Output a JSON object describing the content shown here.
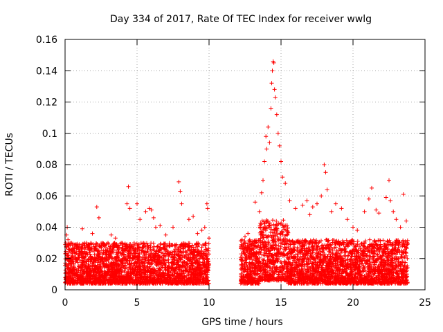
{
  "chart_data": {
    "type": "scatter",
    "title": "Day 334 of 2017, Rate Of TEC Index for receiver wwlg",
    "xlabel": "GPS time / hours",
    "ylabel": "ROTI / TECUs",
    "xlim": [
      0,
      25
    ],
    "ylim": [
      0,
      0.16
    ],
    "x_ticks": [
      "0",
      "5",
      "10",
      "15",
      "20",
      "25"
    ],
    "y_ticks": [
      "0",
      "0.02",
      "0.04",
      "0.06",
      "0.08",
      "0.1",
      "0.12",
      "0.14",
      "0.16"
    ],
    "grid": true,
    "marker": "+",
    "series": [
      {
        "name": "ROTI",
        "color": "#ff0000",
        "points": [
          [
            0.05,
            0.03
          ],
          [
            0.1,
            0.035
          ],
          [
            0.15,
            0.04
          ],
          [
            0.2,
            0.032
          ],
          [
            0.25,
            0.029
          ],
          [
            0.5,
            0.018
          ],
          [
            1.0,
            0.022
          ],
          [
            1.2,
            0.039
          ],
          [
            1.5,
            0.03
          ],
          [
            1.9,
            0.036
          ],
          [
            2.2,
            0.053
          ],
          [
            2.35,
            0.046
          ],
          [
            2.6,
            0.03
          ],
          [
            2.8,
            0.025
          ],
          [
            3.2,
            0.035
          ],
          [
            3.5,
            0.033
          ],
          [
            3.9,
            0.03
          ],
          [
            4.3,
            0.055
          ],
          [
            4.4,
            0.066
          ],
          [
            4.5,
            0.052
          ],
          [
            4.8,
            0.03
          ],
          [
            5.0,
            0.055
          ],
          [
            5.2,
            0.045
          ],
          [
            5.6,
            0.05
          ],
          [
            5.85,
            0.052
          ],
          [
            6.0,
            0.051
          ],
          [
            6.15,
            0.046
          ],
          [
            6.3,
            0.04
          ],
          [
            6.6,
            0.041
          ],
          [
            7.0,
            0.035
          ],
          [
            7.5,
            0.04
          ],
          [
            7.9,
            0.069
          ],
          [
            8.0,
            0.063
          ],
          [
            8.1,
            0.055
          ],
          [
            8.6,
            0.045
          ],
          [
            8.9,
            0.047
          ],
          [
            9.2,
            0.036
          ],
          [
            9.5,
            0.038
          ],
          [
            9.7,
            0.04
          ],
          [
            9.85,
            0.055
          ],
          [
            9.9,
            0.052
          ],
          [
            10.0,
            0.033
          ],
          [
            12.3,
            0.032
          ],
          [
            12.5,
            0.034
          ],
          [
            12.7,
            0.036
          ],
          [
            13.2,
            0.056
          ],
          [
            13.5,
            0.05
          ],
          [
            13.65,
            0.062
          ],
          [
            13.75,
            0.07
          ],
          [
            13.85,
            0.082
          ],
          [
            13.95,
            0.098
          ],
          [
            14.0,
            0.09
          ],
          [
            14.1,
            0.104
          ],
          [
            14.2,
            0.094
          ],
          [
            14.3,
            0.116
          ],
          [
            14.35,
            0.132
          ],
          [
            14.4,
            0.14
          ],
          [
            14.45,
            0.146
          ],
          [
            14.5,
            0.145
          ],
          [
            14.55,
            0.128
          ],
          [
            14.6,
            0.123
          ],
          [
            14.7,
            0.112
          ],
          [
            14.8,
            0.1
          ],
          [
            14.9,
            0.092
          ],
          [
            15.0,
            0.082
          ],
          [
            15.1,
            0.072
          ],
          [
            15.3,
            0.068
          ],
          [
            15.6,
            0.057
          ],
          [
            16.0,
            0.052
          ],
          [
            16.5,
            0.054
          ],
          [
            16.8,
            0.057
          ],
          [
            17.0,
            0.048
          ],
          [
            17.2,
            0.053
          ],
          [
            17.5,
            0.055
          ],
          [
            17.8,
            0.06
          ],
          [
            18.0,
            0.08
          ],
          [
            18.1,
            0.075
          ],
          [
            18.2,
            0.064
          ],
          [
            18.5,
            0.05
          ],
          [
            18.8,
            0.055
          ],
          [
            19.2,
            0.052
          ],
          [
            19.6,
            0.045
          ],
          [
            20.0,
            0.04
          ],
          [
            20.3,
            0.038
          ],
          [
            20.8,
            0.05
          ],
          [
            21.1,
            0.058
          ],
          [
            21.3,
            0.065
          ],
          [
            21.6,
            0.051
          ],
          [
            21.8,
            0.049
          ],
          [
            22.3,
            0.059
          ],
          [
            22.5,
            0.07
          ],
          [
            22.6,
            0.057
          ],
          [
            22.8,
            0.05
          ],
          [
            23.0,
            0.045
          ],
          [
            23.3,
            0.04
          ],
          [
            23.5,
            0.061
          ],
          [
            23.7,
            0.044
          ]
        ]
      }
    ],
    "density_envelope": {
      "description": "Dense cloud of ROTI samples; lower and typical upper bounds over time (hours, TECU)",
      "segments": [
        {
          "x": [
            0,
            10
          ],
          "low": 0.004,
          "high": 0.03
        },
        {
          "x": [
            12.2,
            13.5
          ],
          "low": 0.004,
          "high": 0.032
        },
        {
          "x": [
            13.5,
            15.5
          ],
          "low": 0.006,
          "high": 0.045
        },
        {
          "x": [
            15.5,
            23.8
          ],
          "low": 0.004,
          "high": 0.032
        }
      ]
    }
  }
}
